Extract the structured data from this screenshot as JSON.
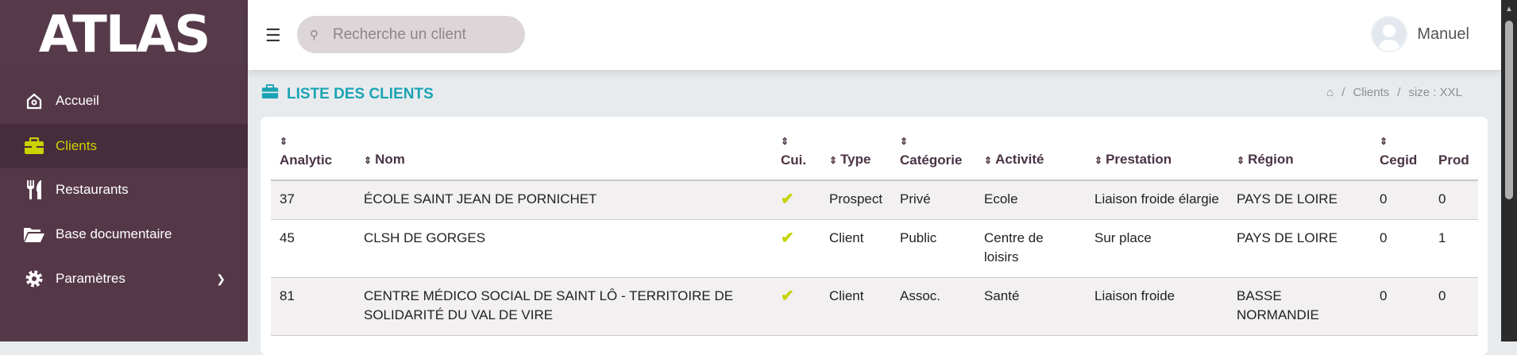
{
  "app": {
    "logo": "ATLAS"
  },
  "sidebar": {
    "items": [
      {
        "label": "Accueil",
        "icon": "home-icon"
      },
      {
        "label": "Clients",
        "icon": "briefcase-icon",
        "active": true
      },
      {
        "label": "Restaurants",
        "icon": "utensils-icon"
      },
      {
        "label": "Base documentaire",
        "icon": "folder-open-icon"
      },
      {
        "label": "Paramètres",
        "icon": "gear-icon",
        "has_submenu": true
      }
    ]
  },
  "header": {
    "search_placeholder": "Recherche un client",
    "user_name": "Manuel"
  },
  "page": {
    "title": "LISTE DES CLIENTS",
    "breadcrumb": [
      "Clients",
      "size : XXL"
    ]
  },
  "colors": {
    "sidebar": "#553848",
    "active": "#cad300",
    "title": "#1aa3b4",
    "check": "#c6d300"
  },
  "table": {
    "columns": [
      "Analytic",
      "Nom",
      "Cui.",
      "Type",
      "Catégorie",
      "Activité",
      "Prestation",
      "Région",
      "Cegid",
      "Prod"
    ],
    "rows": [
      {
        "analytic": "37",
        "nom": "ÉCOLE SAINT JEAN DE PORNICHET",
        "cui": "✔",
        "type": "Prospect",
        "categorie": "Privé",
        "activite": "Ecole",
        "prestation": "Liaison froide élargie",
        "region": "PAYS DE LOIRE",
        "cegid": "0",
        "prod": "0"
      },
      {
        "analytic": "45",
        "nom": "CLSH DE GORGES",
        "cui": "✔",
        "type": "Client",
        "categorie": "Public",
        "activite": "Centre de loisirs",
        "prestation": "Sur place",
        "region": "PAYS DE LOIRE",
        "cegid": "0",
        "prod": "1"
      },
      {
        "analytic": "81",
        "nom": "CENTRE MÉDICO SOCIAL DE SAINT LÔ - TERRITOIRE DE SOLIDARITÉ DU VAL DE VIRE",
        "cui": "✔",
        "type": "Client",
        "categorie": "Assoc.",
        "activite": "Santé",
        "prestation": "Liaison froide",
        "region": "BASSE NORMANDIE",
        "cegid": "0",
        "prod": "0"
      }
    ]
  }
}
